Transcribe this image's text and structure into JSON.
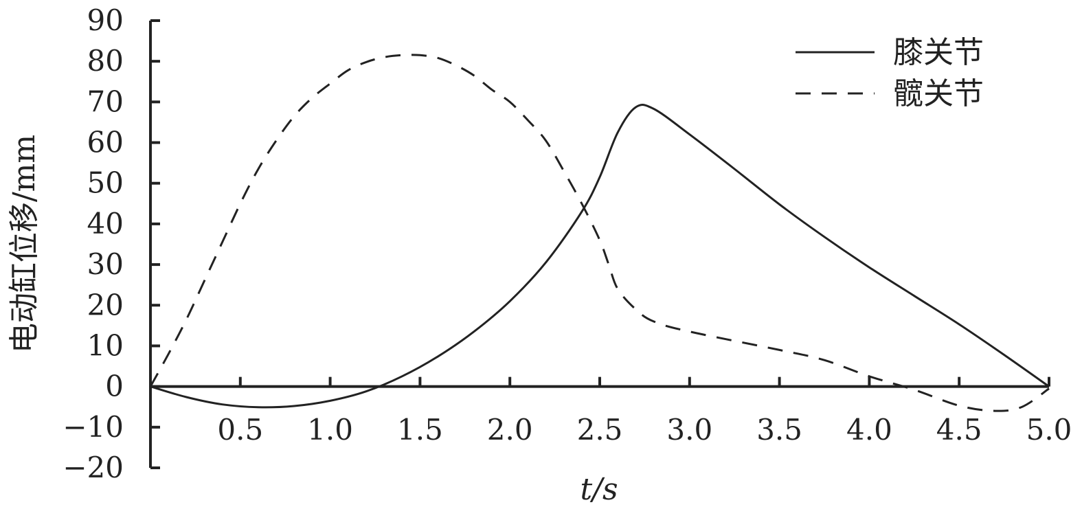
{
  "chart_data": {
    "type": "line",
    "ylabel": "电动缸位移/mm",
    "xlabel": "t/s",
    "xlim": [
      0,
      5.0
    ],
    "ylim": [
      -20,
      90
    ],
    "x_ticks": [
      "0.5",
      "1.0",
      "1.5",
      "2.0",
      "2.5",
      "3.0",
      "3.5",
      "4.0",
      "4.5",
      "5.0"
    ],
    "y_ticks": [
      "90",
      "80",
      "70",
      "60",
      "50",
      "40",
      "30",
      "20",
      "10",
      "0",
      "−10",
      "−20"
    ],
    "y_tick_values": [
      90,
      80,
      70,
      60,
      50,
      40,
      30,
      20,
      10,
      0,
      -10,
      -20
    ],
    "x_tick_values": [
      0.5,
      1.0,
      1.5,
      2.0,
      2.5,
      3.0,
      3.5,
      4.0,
      4.5,
      5.0
    ],
    "legend_position": "top-right",
    "grid": false,
    "series": [
      {
        "name": "膝关节",
        "style": "solid",
        "color": "#222222",
        "points": [
          [
            0,
            0
          ],
          [
            0.2,
            -2.6
          ],
          [
            0.4,
            -4.4
          ],
          [
            0.6,
            -5.1
          ],
          [
            0.8,
            -4.8
          ],
          [
            1.0,
            -3.5
          ],
          [
            1.2,
            -1.2
          ],
          [
            1.4,
            2.5
          ],
          [
            1.6,
            7.4
          ],
          [
            1.8,
            13.5
          ],
          [
            2.0,
            21
          ],
          [
            2.2,
            30.5
          ],
          [
            2.4,
            43
          ],
          [
            2.5,
            51.5
          ],
          [
            2.6,
            62.5
          ],
          [
            2.7,
            68.7
          ],
          [
            2.8,
            68.3
          ],
          [
            3.0,
            62
          ],
          [
            3.25,
            53.5
          ],
          [
            3.5,
            44.8
          ],
          [
            3.75,
            36.8
          ],
          [
            4.0,
            29.3
          ],
          [
            4.25,
            22.3
          ],
          [
            4.5,
            15.3
          ],
          [
            4.75,
            7.8
          ],
          [
            5.0,
            0
          ]
        ]
      },
      {
        "name": "髋关节",
        "style": "dashed",
        "color": "#222222",
        "points": [
          [
            0,
            0
          ],
          [
            0.1,
            8
          ],
          [
            0.2,
            16.5
          ],
          [
            0.3,
            26
          ],
          [
            0.4,
            35.5
          ],
          [
            0.5,
            45
          ],
          [
            0.6,
            53.5
          ],
          [
            0.7,
            60.5
          ],
          [
            0.8,
            66.5
          ],
          [
            0.9,
            71
          ],
          [
            1.0,
            74.5
          ],
          [
            1.1,
            77.8
          ],
          [
            1.2,
            79.8
          ],
          [
            1.3,
            81
          ],
          [
            1.4,
            81.5
          ],
          [
            1.5,
            81.5
          ],
          [
            1.6,
            80.8
          ],
          [
            1.7,
            79
          ],
          [
            1.8,
            76.5
          ],
          [
            1.9,
            73
          ],
          [
            2.0,
            70
          ],
          [
            2.1,
            65.5
          ],
          [
            2.2,
            60.5
          ],
          [
            2.3,
            53
          ],
          [
            2.4,
            45
          ],
          [
            2.5,
            36
          ],
          [
            2.55,
            30
          ],
          [
            2.6,
            24
          ],
          [
            2.7,
            19
          ],
          [
            2.8,
            16
          ],
          [
            3.0,
            13.5
          ],
          [
            3.5,
            9
          ],
          [
            3.75,
            6.5
          ],
          [
            4.0,
            2.5
          ],
          [
            4.25,
            -0.8
          ],
          [
            4.5,
            -4.7
          ],
          [
            4.7,
            -6
          ],
          [
            4.85,
            -5
          ],
          [
            5.0,
            -0.5
          ]
        ]
      }
    ]
  }
}
